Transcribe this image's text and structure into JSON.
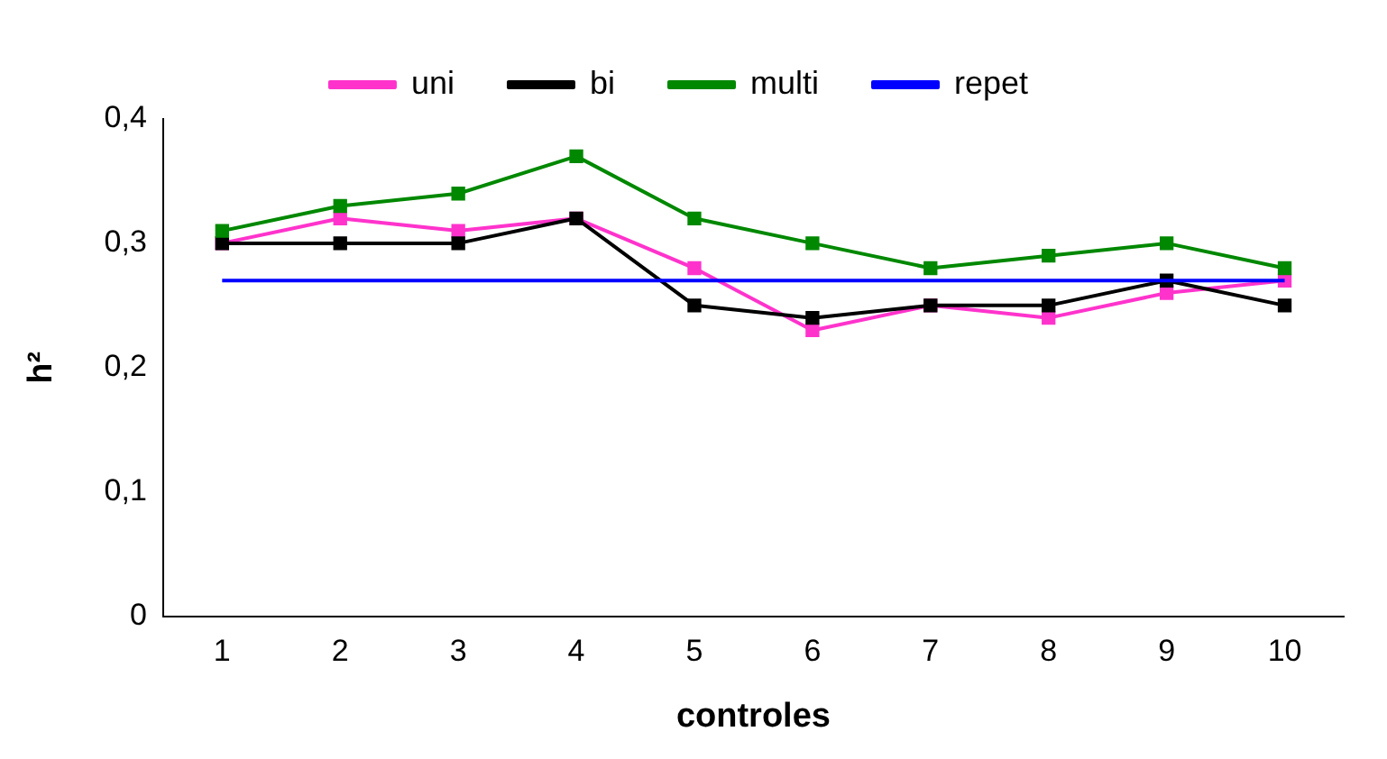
{
  "chart_data": {
    "type": "line",
    "xlabel": "controles",
    "ylabel": "h²",
    "categories": [
      "1",
      "2",
      "3",
      "4",
      "5",
      "6",
      "7",
      "8",
      "9",
      "10"
    ],
    "ylim": [
      0,
      0.4
    ],
    "yticks": [
      {
        "value": 0,
        "label": "0"
      },
      {
        "value": 0.1,
        "label": "0,1"
      },
      {
        "value": 0.2,
        "label": "0,2"
      },
      {
        "value": 0.3,
        "label": "0,3"
      },
      {
        "value": 0.4,
        "label": "0,4"
      }
    ],
    "grid": false,
    "legend": "top",
    "marker": "square",
    "line_style": "solid",
    "series": [
      {
        "name": "uni",
        "color": "#ff33cc",
        "values": [
          0.3,
          0.32,
          0.31,
          0.32,
          0.28,
          0.23,
          0.25,
          0.24,
          0.26,
          0.27
        ]
      },
      {
        "name": "bi",
        "color": "#000000",
        "values": [
          0.3,
          0.3,
          0.3,
          0.32,
          0.25,
          0.24,
          0.25,
          0.25,
          0.27,
          0.25
        ]
      },
      {
        "name": "multi",
        "color": "#008800",
        "values": [
          0.31,
          0.33,
          0.34,
          0.37,
          0.32,
          0.3,
          0.28,
          0.29,
          0.3,
          0.28
        ]
      },
      {
        "name": "repet",
        "color": "#0000ff",
        "marker": "none",
        "values": [
          0.27,
          0.27,
          0.27,
          0.27,
          0.27,
          0.27,
          0.27,
          0.27,
          0.27,
          0.27
        ]
      }
    ]
  }
}
